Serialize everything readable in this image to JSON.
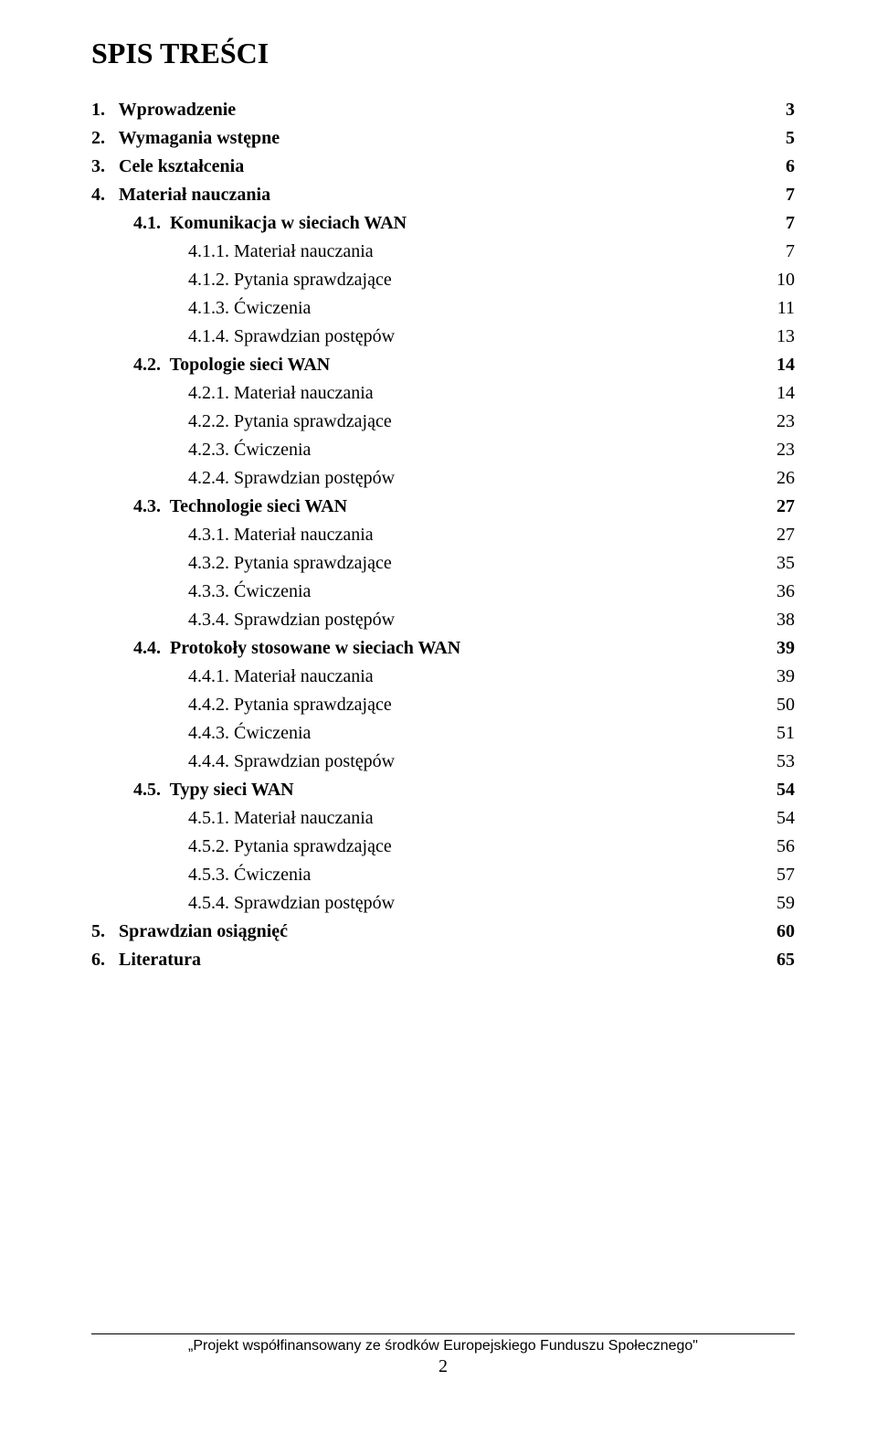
{
  "title": "SPIS TREŚCI",
  "toc": [
    {
      "level": 0,
      "bold": true,
      "num": "1.",
      "text": "Wprowadzenie",
      "page": "3"
    },
    {
      "level": 0,
      "bold": true,
      "num": "2.",
      "text": "Wymagania wstępne",
      "page": "5"
    },
    {
      "level": 0,
      "bold": true,
      "num": "3.",
      "text": "Cele kształcenia",
      "page": "6"
    },
    {
      "level": 0,
      "bold": true,
      "num": "4.",
      "text": "Materiał nauczania",
      "page": "7"
    },
    {
      "level": 1,
      "bold": true,
      "num": "4.1.",
      "text": "Komunikacja w sieciach WAN",
      "page": "7"
    },
    {
      "level": 2,
      "bold": false,
      "num": "4.1.1.",
      "text": "Materiał nauczania",
      "page": "7"
    },
    {
      "level": 2,
      "bold": false,
      "num": "4.1.2.",
      "text": "Pytania sprawdzające",
      "page": "10"
    },
    {
      "level": 2,
      "bold": false,
      "num": "4.1.3.",
      "text": "Ćwiczenia",
      "page": "11"
    },
    {
      "level": 2,
      "bold": false,
      "num": "4.1.4.",
      "text": "Sprawdzian postępów",
      "page": "13"
    },
    {
      "level": 1,
      "bold": true,
      "num": "4.2.",
      "text": "Topologie sieci WAN",
      "page": "14"
    },
    {
      "level": 2,
      "bold": false,
      "num": "4.2.1.",
      "text": "Materiał nauczania",
      "page": "14"
    },
    {
      "level": 2,
      "bold": false,
      "num": "4.2.2.",
      "text": "Pytania sprawdzające",
      "page": "23"
    },
    {
      "level": 2,
      "bold": false,
      "num": "4.2.3.",
      "text": "Ćwiczenia",
      "page": "23"
    },
    {
      "level": 2,
      "bold": false,
      "num": "4.2.4.",
      "text": "Sprawdzian postępów",
      "page": "26"
    },
    {
      "level": 1,
      "bold": true,
      "num": "4.3.",
      "text": "Technologie sieci WAN",
      "page": "27"
    },
    {
      "level": 2,
      "bold": false,
      "num": "4.3.1.",
      "text": "Materiał nauczania",
      "page": "27"
    },
    {
      "level": 2,
      "bold": false,
      "num": "4.3.2.",
      "text": "Pytania sprawdzające",
      "page": "35"
    },
    {
      "level": 2,
      "bold": false,
      "num": "4.3.3.",
      "text": "Ćwiczenia",
      "page": "36"
    },
    {
      "level": 2,
      "bold": false,
      "num": "4.3.4.",
      "text": "Sprawdzian postępów",
      "page": "38"
    },
    {
      "level": 1,
      "bold": true,
      "num": "4.4.",
      "text": "Protokoły stosowane w sieciach WAN",
      "page": "39"
    },
    {
      "level": 2,
      "bold": false,
      "num": "4.4.1.",
      "text": "Materiał nauczania",
      "page": "39"
    },
    {
      "level": 2,
      "bold": false,
      "num": "4.4.2.",
      "text": "Pytania sprawdzające",
      "page": "50"
    },
    {
      "level": 2,
      "bold": false,
      "num": "4.4.3.",
      "text": "Ćwiczenia",
      "page": "51"
    },
    {
      "level": 2,
      "bold": false,
      "num": "4.4.4.",
      "text": "Sprawdzian postępów",
      "page": "53"
    },
    {
      "level": 1,
      "bold": true,
      "num": "4.5.",
      "text": "Typy sieci WAN",
      "page": "54"
    },
    {
      "level": 2,
      "bold": false,
      "num": "4.5.1.",
      "text": "Materiał nauczania",
      "page": "54"
    },
    {
      "level": 2,
      "bold": false,
      "num": "4.5.2.",
      "text": "Pytania sprawdzające",
      "page": "56"
    },
    {
      "level": 2,
      "bold": false,
      "num": "4.5.3.",
      "text": "Ćwiczenia",
      "page": "57"
    },
    {
      "level": 2,
      "bold": false,
      "num": "4.5.4.",
      "text": "Sprawdzian postępów",
      "page": "59"
    },
    {
      "level": 0,
      "bold": true,
      "num": "5.",
      "text": "Sprawdzian osiągnięć",
      "page": "60"
    },
    {
      "level": 0,
      "bold": true,
      "num": "6.",
      "text": "Literatura",
      "page": "65"
    }
  ],
  "footer": {
    "text": "„Projekt współfinansowany ze środków Europejskiego Funduszu Społecznego\"",
    "page_number": "2"
  },
  "layout": {
    "num_width_lvl0": 5,
    "num_width_lvl1": 6,
    "num_width_lvl2": 7
  }
}
